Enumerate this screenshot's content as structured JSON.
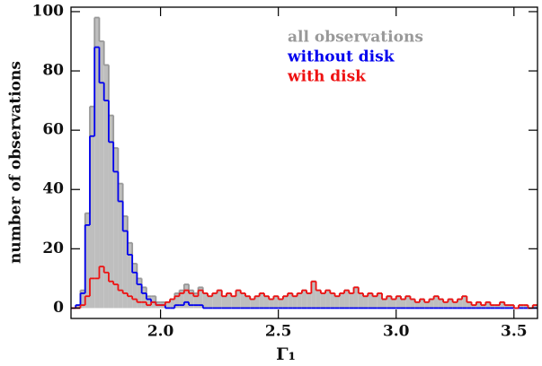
{
  "chart_data": {
    "type": "histogram",
    "xlabel": "Γ₁",
    "ylabel": "number of observations",
    "bins": [
      1.62,
      1.64,
      1.66,
      1.68,
      1.7,
      1.72,
      1.74,
      1.76,
      1.78,
      1.8,
      1.82,
      1.84,
      1.86,
      1.88,
      1.9,
      1.92,
      1.94,
      1.96,
      1.98,
      2.0,
      2.02,
      2.04,
      2.06,
      2.08,
      2.1,
      2.12,
      2.14,
      2.16,
      2.18,
      2.2,
      2.22,
      2.24,
      2.26,
      2.28,
      2.3,
      2.32,
      2.34,
      2.36,
      2.38,
      2.4,
      2.42,
      2.44,
      2.46,
      2.48,
      2.5,
      2.52,
      2.54,
      2.56,
      2.58,
      2.6,
      2.62,
      2.64,
      2.66,
      2.68,
      2.7,
      2.72,
      2.74,
      2.76,
      2.78,
      2.8,
      2.82,
      2.84,
      2.86,
      2.88,
      2.9,
      2.92,
      2.94,
      2.96,
      2.98,
      3.0,
      3.02,
      3.04,
      3.06,
      3.08,
      3.1,
      3.12,
      3.14,
      3.16,
      3.18,
      3.2,
      3.22,
      3.24,
      3.26,
      3.28,
      3.3,
      3.32,
      3.34,
      3.36,
      3.38,
      3.4,
      3.42,
      3.44,
      3.46,
      3.48,
      3.5,
      3.52,
      3.54,
      3.56,
      3.58,
      3.6
    ],
    "series": [
      {
        "name": "all observations",
        "color": "#999999",
        "fill": "#bebebe",
        "values": [
          0,
          1,
          6,
          32,
          68,
          98,
          90,
          82,
          65,
          54,
          42,
          31,
          22,
          15,
          10,
          7,
          4,
          4,
          2,
          2,
          2,
          3,
          5,
          6,
          8,
          6,
          5,
          7,
          5,
          4,
          5,
          6,
          4,
          5,
          4,
          6,
          5,
          4,
          3,
          4,
          5,
          4,
          3,
          4,
          3,
          4,
          5,
          4,
          5,
          6,
          5,
          9,
          6,
          5,
          6,
          5,
          4,
          5,
          6,
          5,
          7,
          5,
          4,
          5,
          4,
          5,
          3,
          4,
          3,
          4,
          3,
          4,
          3,
          2,
          3,
          2,
          3,
          4,
          3,
          2,
          3,
          2,
          3,
          4,
          2,
          1,
          2,
          1,
          2,
          1,
          1,
          2,
          1,
          1,
          0,
          1,
          1,
          0,
          1
        ]
      },
      {
        "name": "without disk",
        "color": "#0000ee",
        "values": [
          0,
          1,
          5,
          28,
          58,
          88,
          76,
          70,
          56,
          46,
          36,
          26,
          18,
          12,
          8,
          5,
          3,
          2,
          1,
          1,
          0,
          0,
          1,
          1,
          2,
          1,
          1,
          1,
          0,
          0,
          0,
          0,
          0,
          0,
          0,
          0,
          0,
          0,
          0,
          0,
          0,
          0,
          0,
          0,
          0,
          0,
          0,
          0,
          0,
          0,
          0,
          0,
          0,
          0,
          0,
          0,
          0,
          0,
          0,
          0,
          0,
          0,
          0,
          0,
          0,
          0,
          0,
          0,
          0,
          0,
          0,
          0,
          0,
          0,
          0,
          0,
          0,
          0,
          0,
          0,
          0,
          0,
          0,
          0,
          0,
          0,
          0,
          0,
          0,
          0,
          0,
          0,
          0,
          0,
          0,
          0,
          0,
          0,
          0
        ]
      },
      {
        "name": "with disk",
        "color": "#ee1111",
        "values": [
          0,
          0,
          1,
          4,
          10,
          10,
          14,
          12,
          9,
          8,
          6,
          5,
          4,
          3,
          2,
          2,
          1,
          2,
          1,
          1,
          2,
          3,
          4,
          5,
          6,
          5,
          4,
          6,
          5,
          4,
          5,
          6,
          4,
          5,
          4,
          6,
          5,
          4,
          3,
          4,
          5,
          4,
          3,
          4,
          3,
          4,
          5,
          4,
          5,
          6,
          5,
          9,
          6,
          5,
          6,
          5,
          4,
          5,
          6,
          5,
          7,
          5,
          4,
          5,
          4,
          5,
          3,
          4,
          3,
          4,
          3,
          4,
          3,
          2,
          3,
          2,
          3,
          4,
          3,
          2,
          3,
          2,
          3,
          4,
          2,
          1,
          2,
          1,
          2,
          1,
          1,
          2,
          1,
          1,
          0,
          1,
          1,
          0,
          1
        ]
      }
    ],
    "xlim": [
      1.62,
      3.6
    ],
    "ylim": [
      -3.5,
      101.5
    ],
    "xticks": [
      {
        "value": 2,
        "label": "2.0"
      },
      {
        "value": 2.5,
        "label": "2.5"
      },
      {
        "value": 3,
        "label": "3.0"
      },
      {
        "value": 3.5,
        "label": "3.5"
      }
    ],
    "yticks": [
      0,
      20,
      40,
      60,
      80,
      100
    ],
    "legend": "upper right"
  }
}
